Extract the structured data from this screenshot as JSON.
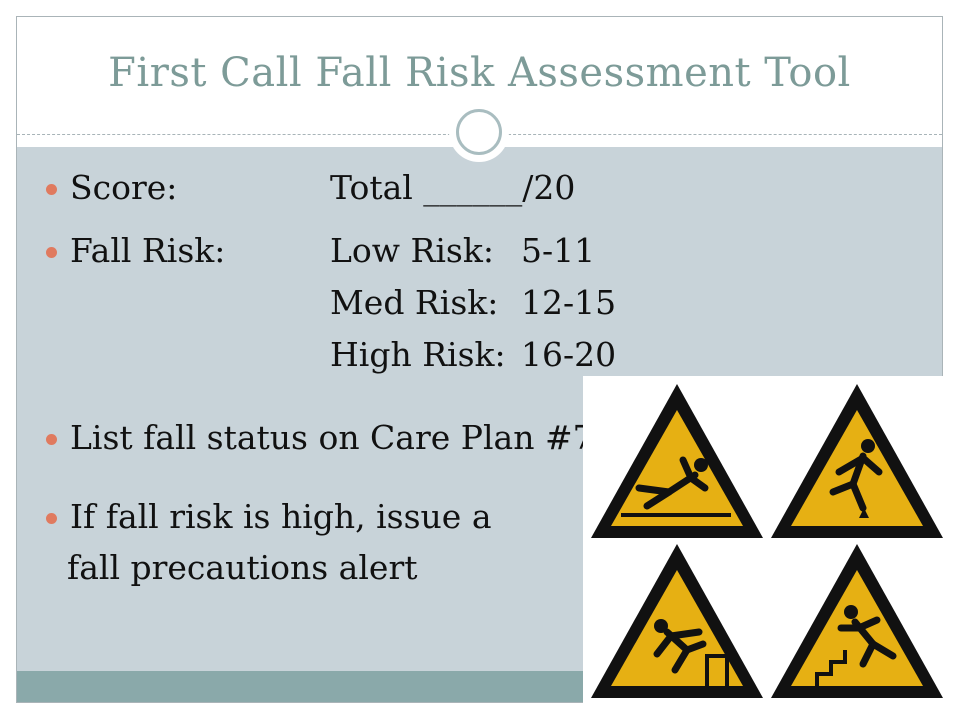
{
  "title": "First Call Fall Risk Assessment Tool",
  "bullets": {
    "score_label": "Score:",
    "score_value": "Total ______/20",
    "fall_risk_label": "Fall Risk:",
    "risk_levels": [
      {
        "label": "Low Risk:",
        "range": "5-11"
      },
      {
        "label": "Med Risk:",
        "range": "12-15"
      },
      {
        "label": "High Risk:",
        "range": "16-20"
      }
    ],
    "care_plan": "List fall status on Care Plan #7",
    "high_risk_line1": "If fall risk is high, issue a",
    "high_risk_line2": "fall precautions alert"
  },
  "colors": {
    "title": "#7d9b98",
    "content_background": "#c8d3d9",
    "bottom_band": "#8aa9aa",
    "bullet": "#e07a5f",
    "sign_fill": "#e6b013",
    "sign_border": "#111111"
  },
  "icons": [
    "slip-warning-icon",
    "trip-warning-icon",
    "fall-step-warning-icon",
    "stairs-fall-warning-icon"
  ]
}
